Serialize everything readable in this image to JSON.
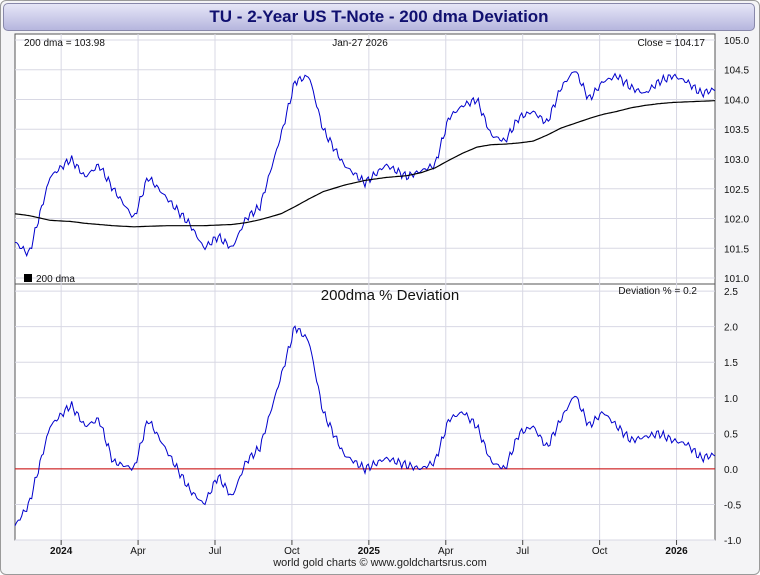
{
  "page": {
    "title": "TU  -  2-Year US T-Note - 200 dma Deviation",
    "footer": "world gold charts © www.goldchartsrus.com"
  },
  "chart_data": [
    {
      "type": "line",
      "title": "",
      "annotation_left": "200 dma = 103.98",
      "annotation_center": "Jan-27  2026",
      "annotation_right": "Close = 104.17",
      "legend": "200 dma",
      "ylim": [
        100.9,
        105.1
      ],
      "yticks": [
        101.0,
        101.5,
        102.0,
        102.5,
        103.0,
        103.5,
        104.0,
        104.5,
        105.0
      ],
      "x": [
        0,
        0.02,
        0.05,
        0.08,
        0.1,
        0.12,
        0.14,
        0.17,
        0.19,
        0.22,
        0.25,
        0.27,
        0.29,
        0.31,
        0.33,
        0.35,
        0.38,
        0.4,
        0.42,
        0.44,
        0.47,
        0.5,
        0.53,
        0.56,
        0.58,
        0.6,
        0.62,
        0.64,
        0.66,
        0.68,
        0.7,
        0.72,
        0.74,
        0.76,
        0.78,
        0.8,
        0.82,
        0.84,
        0.86,
        0.88,
        0.9,
        0.92,
        0.94,
        0.96,
        0.98,
        1.0
      ],
      "series": [
        {
          "name": "TU",
          "color": "#0000cc",
          "values": [
            101.6,
            101.4,
            102.7,
            103.0,
            102.7,
            102.9,
            102.5,
            102.0,
            102.7,
            102.3,
            101.9,
            101.5,
            101.7,
            101.5,
            102.0,
            102.2,
            103.4,
            104.3,
            104.4,
            103.5,
            102.9,
            102.6,
            102.9,
            102.7,
            102.8,
            102.9,
            103.7,
            103.9,
            104.0,
            103.4,
            103.3,
            103.7,
            103.8,
            103.6,
            104.2,
            104.5,
            104.0,
            104.3,
            104.4,
            104.2,
            104.1,
            104.3,
            104.4,
            104.3,
            104.1,
            104.17
          ]
        },
        {
          "name": "200 dma",
          "color": "#000000",
          "values": [
            102.08,
            102.05,
            101.97,
            101.95,
            101.92,
            101.9,
            101.88,
            101.86,
            101.87,
            101.88,
            101.88,
            101.88,
            101.89,
            101.9,
            101.93,
            101.98,
            102.08,
            102.2,
            102.33,
            102.45,
            102.56,
            102.64,
            102.69,
            102.72,
            102.77,
            102.85,
            102.98,
            103.1,
            103.2,
            103.24,
            103.25,
            103.27,
            103.3,
            103.4,
            103.52,
            103.6,
            103.68,
            103.75,
            103.8,
            103.86,
            103.9,
            103.93,
            103.95,
            103.96,
            103.97,
            103.98
          ]
        }
      ]
    },
    {
      "type": "line",
      "title": "200dma  %  Deviation",
      "annotation_right": "Deviation % = 0.2",
      "ylim": [
        -1.0,
        2.6
      ],
      "yticks": [
        -1.0,
        -0.5,
        0.0,
        0.5,
        1.0,
        1.5,
        2.0,
        2.5
      ],
      "xticks": [
        "2024",
        "Apr",
        "Jul",
        "Oct",
        "2025",
        "Apr",
        "Jul",
        "Oct",
        "2026"
      ],
      "reference_line": 0.0,
      "x": [
        0,
        0.02,
        0.05,
        0.08,
        0.1,
        0.12,
        0.14,
        0.17,
        0.19,
        0.22,
        0.25,
        0.27,
        0.29,
        0.31,
        0.33,
        0.35,
        0.38,
        0.4,
        0.42,
        0.44,
        0.47,
        0.5,
        0.53,
        0.56,
        0.58,
        0.6,
        0.62,
        0.64,
        0.66,
        0.68,
        0.7,
        0.72,
        0.74,
        0.76,
        0.78,
        0.8,
        0.82,
        0.84,
        0.86,
        0.88,
        0.9,
        0.92,
        0.94,
        0.96,
        0.98,
        1.0
      ],
      "series": [
        {
          "name": "Deviation %",
          "color": "#0000cc",
          "values": [
            -0.8,
            -0.5,
            0.6,
            0.9,
            0.6,
            0.7,
            0.1,
            0.0,
            0.7,
            0.2,
            -0.3,
            -0.5,
            -0.1,
            -0.4,
            0.1,
            0.3,
            1.3,
            2.0,
            1.8,
            0.8,
            0.2,
            0.0,
            0.15,
            0.05,
            0.0,
            0.1,
            0.7,
            0.8,
            0.6,
            0.1,
            0.0,
            0.5,
            0.6,
            0.3,
            0.7,
            1.05,
            0.6,
            0.8,
            0.6,
            0.4,
            0.45,
            0.5,
            0.4,
            0.35,
            0.15,
            0.2
          ]
        }
      ]
    }
  ]
}
